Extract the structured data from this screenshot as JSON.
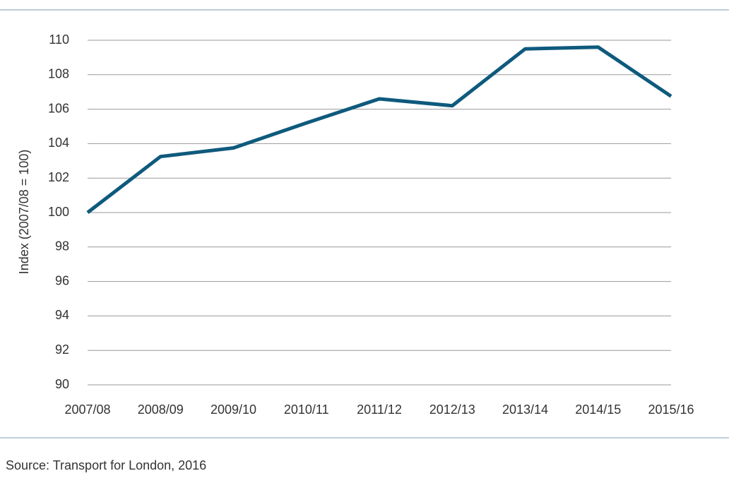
{
  "chart_data": {
    "type": "line",
    "y_label": "Index (2007/08 = 100)",
    "source": "Source: Transport for London, 2016",
    "categories": [
      "2007/08",
      "2008/09",
      "2009/10",
      "2010/11",
      "2011/12",
      "2012/13",
      "2013/14",
      "2014/15",
      "2015/16"
    ],
    "series": [
      {
        "name": "Index",
        "color": "#0e5a7d",
        "values": [
          100,
          103.25,
          103.75,
          105.2,
          106.6,
          106.2,
          109.5,
          109.6,
          106.75
        ]
      }
    ],
    "ylim": [
      90,
      110
    ],
    "yticks": [
      90,
      92,
      94,
      96,
      98,
      100,
      102,
      104,
      106,
      108,
      110
    ],
    "grid": true
  }
}
